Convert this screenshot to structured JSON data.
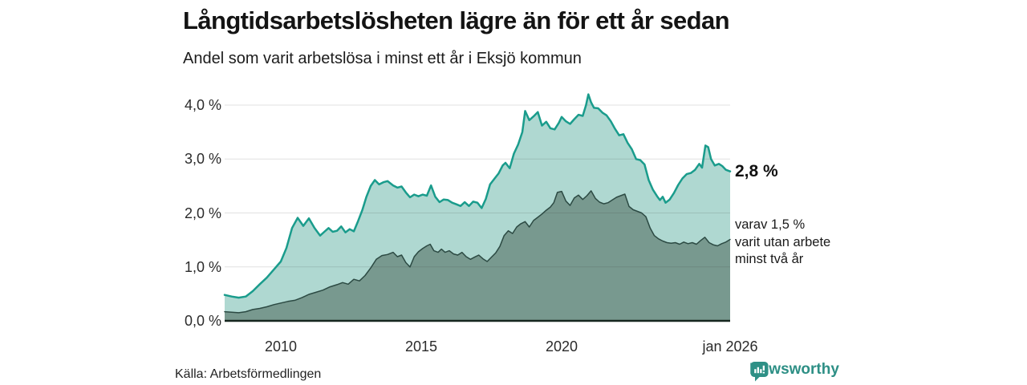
{
  "header": {
    "title": "Långtidsarbetslösheten lägre än för ett år sedan",
    "subtitle": "Andel som varit arbetslösa i minst ett år i Eksjö kommun"
  },
  "chart_data": {
    "type": "area",
    "title": "Långtidsarbetslösheten lägre än för ett år sedan",
    "subtitle": "Andel som varit arbetslösa i minst ett år i Eksjö kommun",
    "xlim": [
      2008,
      2026
    ],
    "ylim": [
      0,
      4.3
    ],
    "grid": true,
    "y_ticks": [
      {
        "value": 4,
        "label": "4,0 %"
      },
      {
        "value": 3,
        "label": "3,0 %"
      },
      {
        "value": 2,
        "label": "2,0 %"
      },
      {
        "value": 1,
        "label": "1,0 %"
      },
      {
        "value": 0,
        "label": "0,0 %"
      }
    ],
    "x_ticks": [
      {
        "value": 2010,
        "label": "2010"
      },
      {
        "value": 2015,
        "label": "2015"
      },
      {
        "value": 2020,
        "label": "2020"
      },
      {
        "value": 2026,
        "label": "jan 2026"
      }
    ],
    "series": [
      {
        "name": "Andel som varit arbetslösa i minst ett år",
        "line_color": "#1a9c8c",
        "fill_color": "#afd8d1",
        "line_width": 2.5,
        "end_value": "2,8 %",
        "points": [
          [
            2008.0,
            0.48
          ],
          [
            2008.25,
            0.45
          ],
          [
            2008.5,
            0.43
          ],
          [
            2008.75,
            0.45
          ],
          [
            2009.0,
            0.55
          ],
          [
            2009.25,
            0.68
          ],
          [
            2009.5,
            0.8
          ],
          [
            2009.75,
            0.95
          ],
          [
            2010.0,
            1.1
          ],
          [
            2010.2,
            1.35
          ],
          [
            2010.4,
            1.72
          ],
          [
            2010.6,
            1.91
          ],
          [
            2010.8,
            1.76
          ],
          [
            2011.0,
            1.9
          ],
          [
            2011.2,
            1.72
          ],
          [
            2011.4,
            1.58
          ],
          [
            2011.55,
            1.65
          ],
          [
            2011.7,
            1.72
          ],
          [
            2011.85,
            1.65
          ],
          [
            2012.0,
            1.67
          ],
          [
            2012.15,
            1.75
          ],
          [
            2012.3,
            1.64
          ],
          [
            2012.45,
            1.7
          ],
          [
            2012.6,
            1.66
          ],
          [
            2012.75,
            1.85
          ],
          [
            2012.9,
            2.05
          ],
          [
            2013.05,
            2.3
          ],
          [
            2013.2,
            2.5
          ],
          [
            2013.35,
            2.61
          ],
          [
            2013.5,
            2.53
          ],
          [
            2013.65,
            2.57
          ],
          [
            2013.8,
            2.59
          ],
          [
            2014.0,
            2.51
          ],
          [
            2014.15,
            2.47
          ],
          [
            2014.3,
            2.49
          ],
          [
            2014.45,
            2.38
          ],
          [
            2014.6,
            2.29
          ],
          [
            2014.75,
            2.34
          ],
          [
            2014.9,
            2.31
          ],
          [
            2015.05,
            2.34
          ],
          [
            2015.2,
            2.32
          ],
          [
            2015.35,
            2.51
          ],
          [
            2015.5,
            2.3
          ],
          [
            2015.65,
            2.2
          ],
          [
            2015.8,
            2.25
          ],
          [
            2015.95,
            2.24
          ],
          [
            2016.1,
            2.19
          ],
          [
            2016.25,
            2.16
          ],
          [
            2016.4,
            2.13
          ],
          [
            2016.55,
            2.2
          ],
          [
            2016.7,
            2.13
          ],
          [
            2016.85,
            2.21
          ],
          [
            2017.0,
            2.19
          ],
          [
            2017.15,
            2.09
          ],
          [
            2017.3,
            2.26
          ],
          [
            2017.45,
            2.53
          ],
          [
            2017.6,
            2.63
          ],
          [
            2017.75,
            2.73
          ],
          [
            2017.9,
            2.88
          ],
          [
            2018.0,
            2.93
          ],
          [
            2018.15,
            2.83
          ],
          [
            2018.3,
            3.1
          ],
          [
            2018.45,
            3.27
          ],
          [
            2018.6,
            3.5
          ],
          [
            2018.7,
            3.89
          ],
          [
            2018.85,
            3.72
          ],
          [
            2019.0,
            3.79
          ],
          [
            2019.15,
            3.87
          ],
          [
            2019.3,
            3.62
          ],
          [
            2019.45,
            3.69
          ],
          [
            2019.6,
            3.57
          ],
          [
            2019.75,
            3.55
          ],
          [
            2019.9,
            3.67
          ],
          [
            2020.0,
            3.78
          ],
          [
            2020.15,
            3.7
          ],
          [
            2020.3,
            3.65
          ],
          [
            2020.45,
            3.74
          ],
          [
            2020.6,
            3.82
          ],
          [
            2020.75,
            3.8
          ],
          [
            2020.87,
            4.0
          ],
          [
            2020.95,
            4.2
          ],
          [
            2021.05,
            4.05
          ],
          [
            2021.15,
            3.95
          ],
          [
            2021.3,
            3.94
          ],
          [
            2021.45,
            3.86
          ],
          [
            2021.6,
            3.81
          ],
          [
            2021.75,
            3.7
          ],
          [
            2021.9,
            3.56
          ],
          [
            2022.05,
            3.44
          ],
          [
            2022.2,
            3.46
          ],
          [
            2022.35,
            3.3
          ],
          [
            2022.5,
            3.18
          ],
          [
            2022.65,
            3.0
          ],
          [
            2022.8,
            2.98
          ],
          [
            2022.95,
            2.9
          ],
          [
            2023.1,
            2.61
          ],
          [
            2023.25,
            2.43
          ],
          [
            2023.4,
            2.31
          ],
          [
            2023.5,
            2.24
          ],
          [
            2023.6,
            2.3
          ],
          [
            2023.7,
            2.19
          ],
          [
            2023.85,
            2.25
          ],
          [
            2024.0,
            2.37
          ],
          [
            2024.15,
            2.52
          ],
          [
            2024.3,
            2.64
          ],
          [
            2024.45,
            2.72
          ],
          [
            2024.6,
            2.74
          ],
          [
            2024.75,
            2.8
          ],
          [
            2024.9,
            2.91
          ],
          [
            2025.0,
            2.84
          ],
          [
            2025.12,
            3.25
          ],
          [
            2025.22,
            3.22
          ],
          [
            2025.32,
            3.0
          ],
          [
            2025.45,
            2.88
          ],
          [
            2025.6,
            2.91
          ],
          [
            2025.72,
            2.87
          ],
          [
            2025.85,
            2.8
          ],
          [
            2026.0,
            2.77
          ]
        ]
      },
      {
        "name": "varav varit utan arbete minst två år",
        "line_color": "#2c4a43",
        "fill_color": "#78998f",
        "line_width": 1.5,
        "end_value": "1,5 %",
        "points": [
          [
            2008.0,
            0.17
          ],
          [
            2008.25,
            0.16
          ],
          [
            2008.5,
            0.15
          ],
          [
            2008.75,
            0.17
          ],
          [
            2009.0,
            0.21
          ],
          [
            2009.25,
            0.23
          ],
          [
            2009.5,
            0.26
          ],
          [
            2009.75,
            0.3
          ],
          [
            2010.0,
            0.33
          ],
          [
            2010.25,
            0.36
          ],
          [
            2010.5,
            0.38
          ],
          [
            2010.75,
            0.43
          ],
          [
            2011.0,
            0.49
          ],
          [
            2011.25,
            0.53
          ],
          [
            2011.5,
            0.57
          ],
          [
            2011.75,
            0.63
          ],
          [
            2012.0,
            0.67
          ],
          [
            2012.2,
            0.71
          ],
          [
            2012.4,
            0.68
          ],
          [
            2012.6,
            0.77
          ],
          [
            2012.8,
            0.74
          ],
          [
            2013.0,
            0.84
          ],
          [
            2013.2,
            0.98
          ],
          [
            2013.4,
            1.14
          ],
          [
            2013.6,
            1.21
          ],
          [
            2013.8,
            1.23
          ],
          [
            2014.0,
            1.27
          ],
          [
            2014.15,
            1.19
          ],
          [
            2014.3,
            1.22
          ],
          [
            2014.45,
            1.08
          ],
          [
            2014.6,
            1.0
          ],
          [
            2014.75,
            1.19
          ],
          [
            2014.9,
            1.28
          ],
          [
            2015.05,
            1.34
          ],
          [
            2015.2,
            1.39
          ],
          [
            2015.32,
            1.42
          ],
          [
            2015.45,
            1.3
          ],
          [
            2015.6,
            1.27
          ],
          [
            2015.72,
            1.33
          ],
          [
            2015.85,
            1.27
          ],
          [
            2016.0,
            1.3
          ],
          [
            2016.15,
            1.24
          ],
          [
            2016.3,
            1.22
          ],
          [
            2016.45,
            1.27
          ],
          [
            2016.6,
            1.19
          ],
          [
            2016.75,
            1.14
          ],
          [
            2016.9,
            1.18
          ],
          [
            2017.05,
            1.22
          ],
          [
            2017.2,
            1.15
          ],
          [
            2017.35,
            1.1
          ],
          [
            2017.5,
            1.18
          ],
          [
            2017.65,
            1.26
          ],
          [
            2017.8,
            1.38
          ],
          [
            2017.95,
            1.58
          ],
          [
            2018.1,
            1.67
          ],
          [
            2018.25,
            1.62
          ],
          [
            2018.4,
            1.74
          ],
          [
            2018.55,
            1.8
          ],
          [
            2018.7,
            1.84
          ],
          [
            2018.85,
            1.74
          ],
          [
            2019.0,
            1.86
          ],
          [
            2019.15,
            1.92
          ],
          [
            2019.3,
            1.98
          ],
          [
            2019.45,
            2.05
          ],
          [
            2019.6,
            2.11
          ],
          [
            2019.72,
            2.19
          ],
          [
            2019.85,
            2.38
          ],
          [
            2020.0,
            2.4
          ],
          [
            2020.15,
            2.22
          ],
          [
            2020.3,
            2.14
          ],
          [
            2020.45,
            2.28
          ],
          [
            2020.6,
            2.33
          ],
          [
            2020.75,
            2.25
          ],
          [
            2020.9,
            2.32
          ],
          [
            2021.05,
            2.41
          ],
          [
            2021.2,
            2.27
          ],
          [
            2021.35,
            2.2
          ],
          [
            2021.5,
            2.17
          ],
          [
            2021.65,
            2.19
          ],
          [
            2021.8,
            2.24
          ],
          [
            2021.95,
            2.29
          ],
          [
            2022.1,
            2.32
          ],
          [
            2022.25,
            2.35
          ],
          [
            2022.4,
            2.12
          ],
          [
            2022.55,
            2.06
          ],
          [
            2022.7,
            2.03
          ],
          [
            2022.85,
            2.0
          ],
          [
            2023.0,
            1.93
          ],
          [
            2023.15,
            1.72
          ],
          [
            2023.3,
            1.58
          ],
          [
            2023.45,
            1.52
          ],
          [
            2023.6,
            1.48
          ],
          [
            2023.75,
            1.45
          ],
          [
            2023.9,
            1.44
          ],
          [
            2024.05,
            1.45
          ],
          [
            2024.2,
            1.42
          ],
          [
            2024.35,
            1.46
          ],
          [
            2024.5,
            1.43
          ],
          [
            2024.65,
            1.45
          ],
          [
            2024.8,
            1.42
          ],
          [
            2024.95,
            1.49
          ],
          [
            2025.1,
            1.55
          ],
          [
            2025.25,
            1.45
          ],
          [
            2025.4,
            1.41
          ],
          [
            2025.55,
            1.39
          ],
          [
            2025.7,
            1.43
          ],
          [
            2025.85,
            1.46
          ],
          [
            2026.0,
            1.51
          ]
        ]
      }
    ],
    "annotations": {
      "total_end_label": "2,8 %",
      "subset_line1": "varav 1,5 %",
      "subset_line2": "varit utan arbete",
      "subset_line3": "minst två år"
    }
  },
  "colors": {
    "accent_teal": "#1a9c8c",
    "light_fill": "#afd8d1",
    "dark_fill": "#78998f",
    "dark_line": "#2c4a43",
    "axis": "#16261f",
    "grid": "#e0e0e0",
    "brand_teal": "#2d8f85"
  },
  "footer": {
    "source": "Källa: Arbetsförmedlingen",
    "brand_name": "Newsworthy"
  }
}
